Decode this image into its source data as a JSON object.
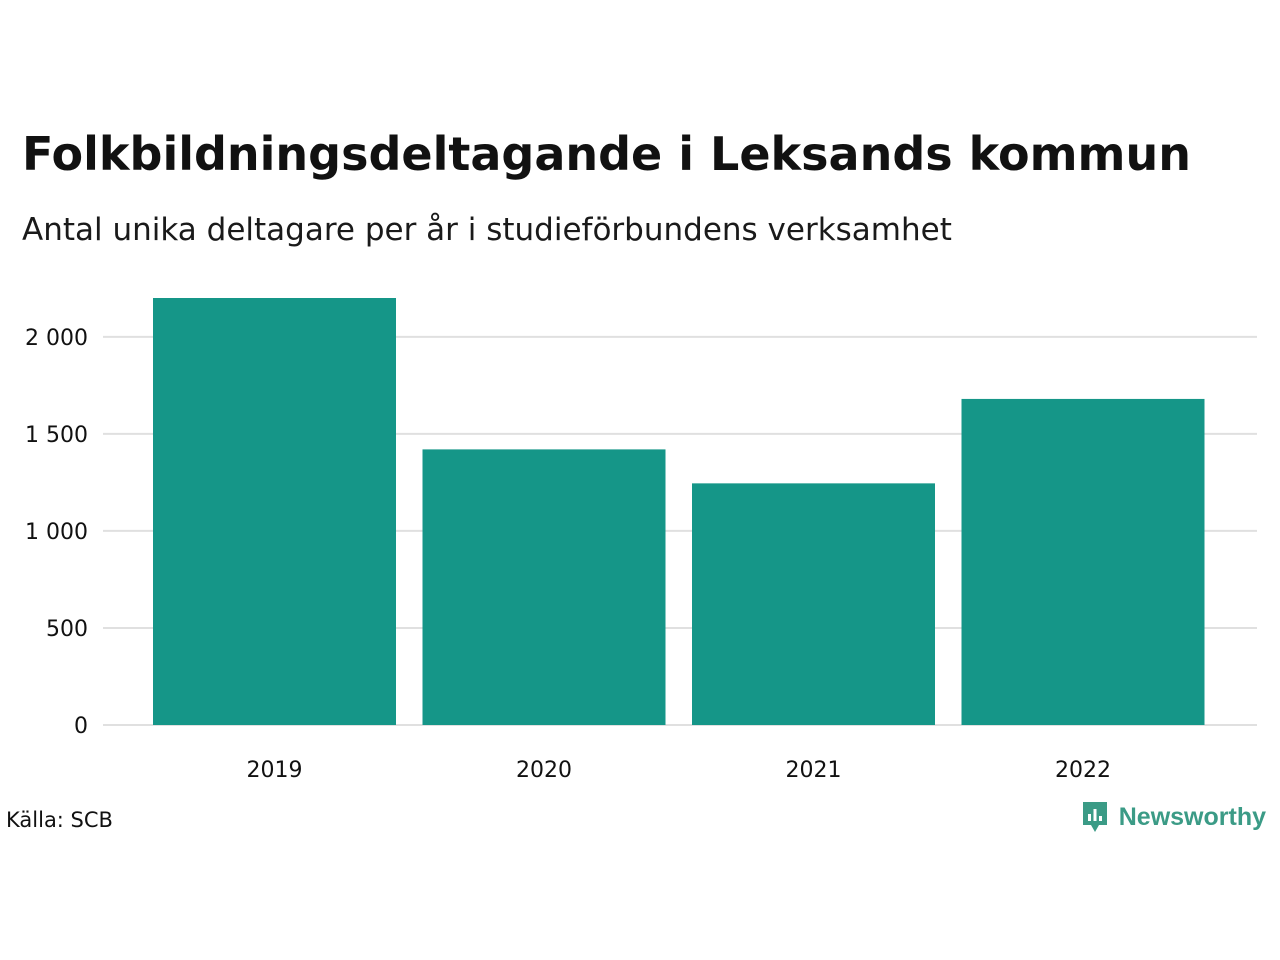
{
  "colors": {
    "bar": "#159688",
    "grid": "#e0e0e0",
    "brand": "#3b9b86",
    "text": "#111111"
  },
  "header": {
    "title": "Folkbildningsdeltagande i Leksands kommun",
    "subtitle": "Antal unika deltagare per år i studieförbundens verksamhet"
  },
  "footer": {
    "source": "Källa: SCB",
    "brand_name": "Newsworthy",
    "brand_icon": "newsworthy-logo-icon"
  },
  "chart_data": {
    "type": "bar",
    "title": "Folkbildningsdeltagande i Leksands kommun",
    "subtitle": "Antal unika deltagare per år i studieförbundens verksamhet",
    "xlabel": "",
    "ylabel": "",
    "categories": [
      "2019",
      "2020",
      "2021",
      "2022"
    ],
    "values": [
      2200,
      1420,
      1245,
      1680
    ],
    "ylim": [
      0,
      2200
    ],
    "yticks": [
      0,
      500,
      1000,
      1500,
      2000
    ],
    "ytick_labels": [
      "0",
      "500",
      "1 000",
      "1 500",
      "2 000"
    ],
    "grid": true,
    "legend": "none"
  }
}
